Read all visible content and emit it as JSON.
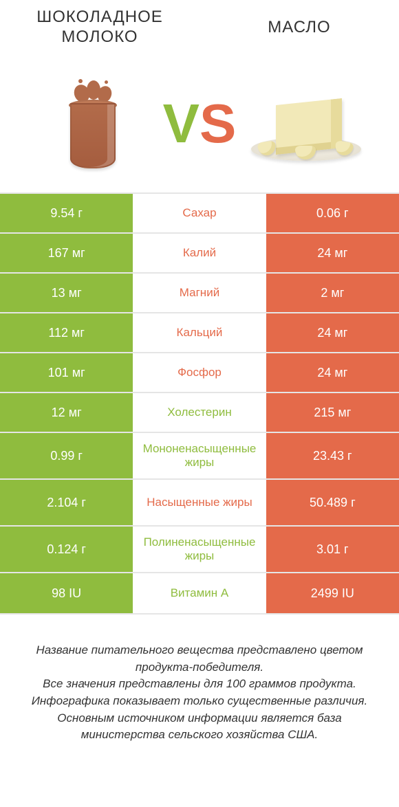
{
  "colors": {
    "green": "#8fbc3e",
    "orange": "#e46a4a",
    "text": "#333333",
    "border": "#e5e5e5",
    "background": "#ffffff"
  },
  "titles": {
    "left": "Шоколадное молоко",
    "right": "Масло"
  },
  "vs": {
    "v": "V",
    "s": "S"
  },
  "rows": [
    {
      "nutrient": "Сахар",
      "left": "9.54 г",
      "right": "0.06 г",
      "winner": "left",
      "tall": false
    },
    {
      "nutrient": "Калий",
      "left": "167 мг",
      "right": "24 мг",
      "winner": "left",
      "tall": false
    },
    {
      "nutrient": "Магний",
      "left": "13 мг",
      "right": "2 мг",
      "winner": "left",
      "tall": false
    },
    {
      "nutrient": "Кальций",
      "left": "112 мг",
      "right": "24 мг",
      "winner": "left",
      "tall": false
    },
    {
      "nutrient": "Фосфор",
      "left": "101 мг",
      "right": "24 мг",
      "winner": "left",
      "tall": false
    },
    {
      "nutrient": "Холестерин",
      "left": "12 мг",
      "right": "215 мг",
      "winner": "right",
      "tall": false
    },
    {
      "nutrient": "Мононенасыщенные жиры",
      "left": "0.99 г",
      "right": "23.43 г",
      "winner": "right",
      "tall": true
    },
    {
      "nutrient": "Насыщенные жиры",
      "left": "2.104 г",
      "right": "50.489 г",
      "winner": "left",
      "tall": true
    },
    {
      "nutrient": "Полиненасыщенные жиры",
      "left": "0.124 г",
      "right": "3.01 г",
      "winner": "right",
      "tall": true
    },
    {
      "nutrient": "Витамин A",
      "left": "98 IU",
      "right": "2499 IU",
      "winner": "right",
      "tall": false
    }
  ],
  "footer": {
    "l1": "Название питательного вещества представлено цветом продукта-победителя.",
    "l2": "Все значения представлены для 100 граммов продукта.",
    "l3": "Инфографика показывает только существенные различия.",
    "l4": "Основным источником информации является база министерства сельского хозяйства США."
  }
}
